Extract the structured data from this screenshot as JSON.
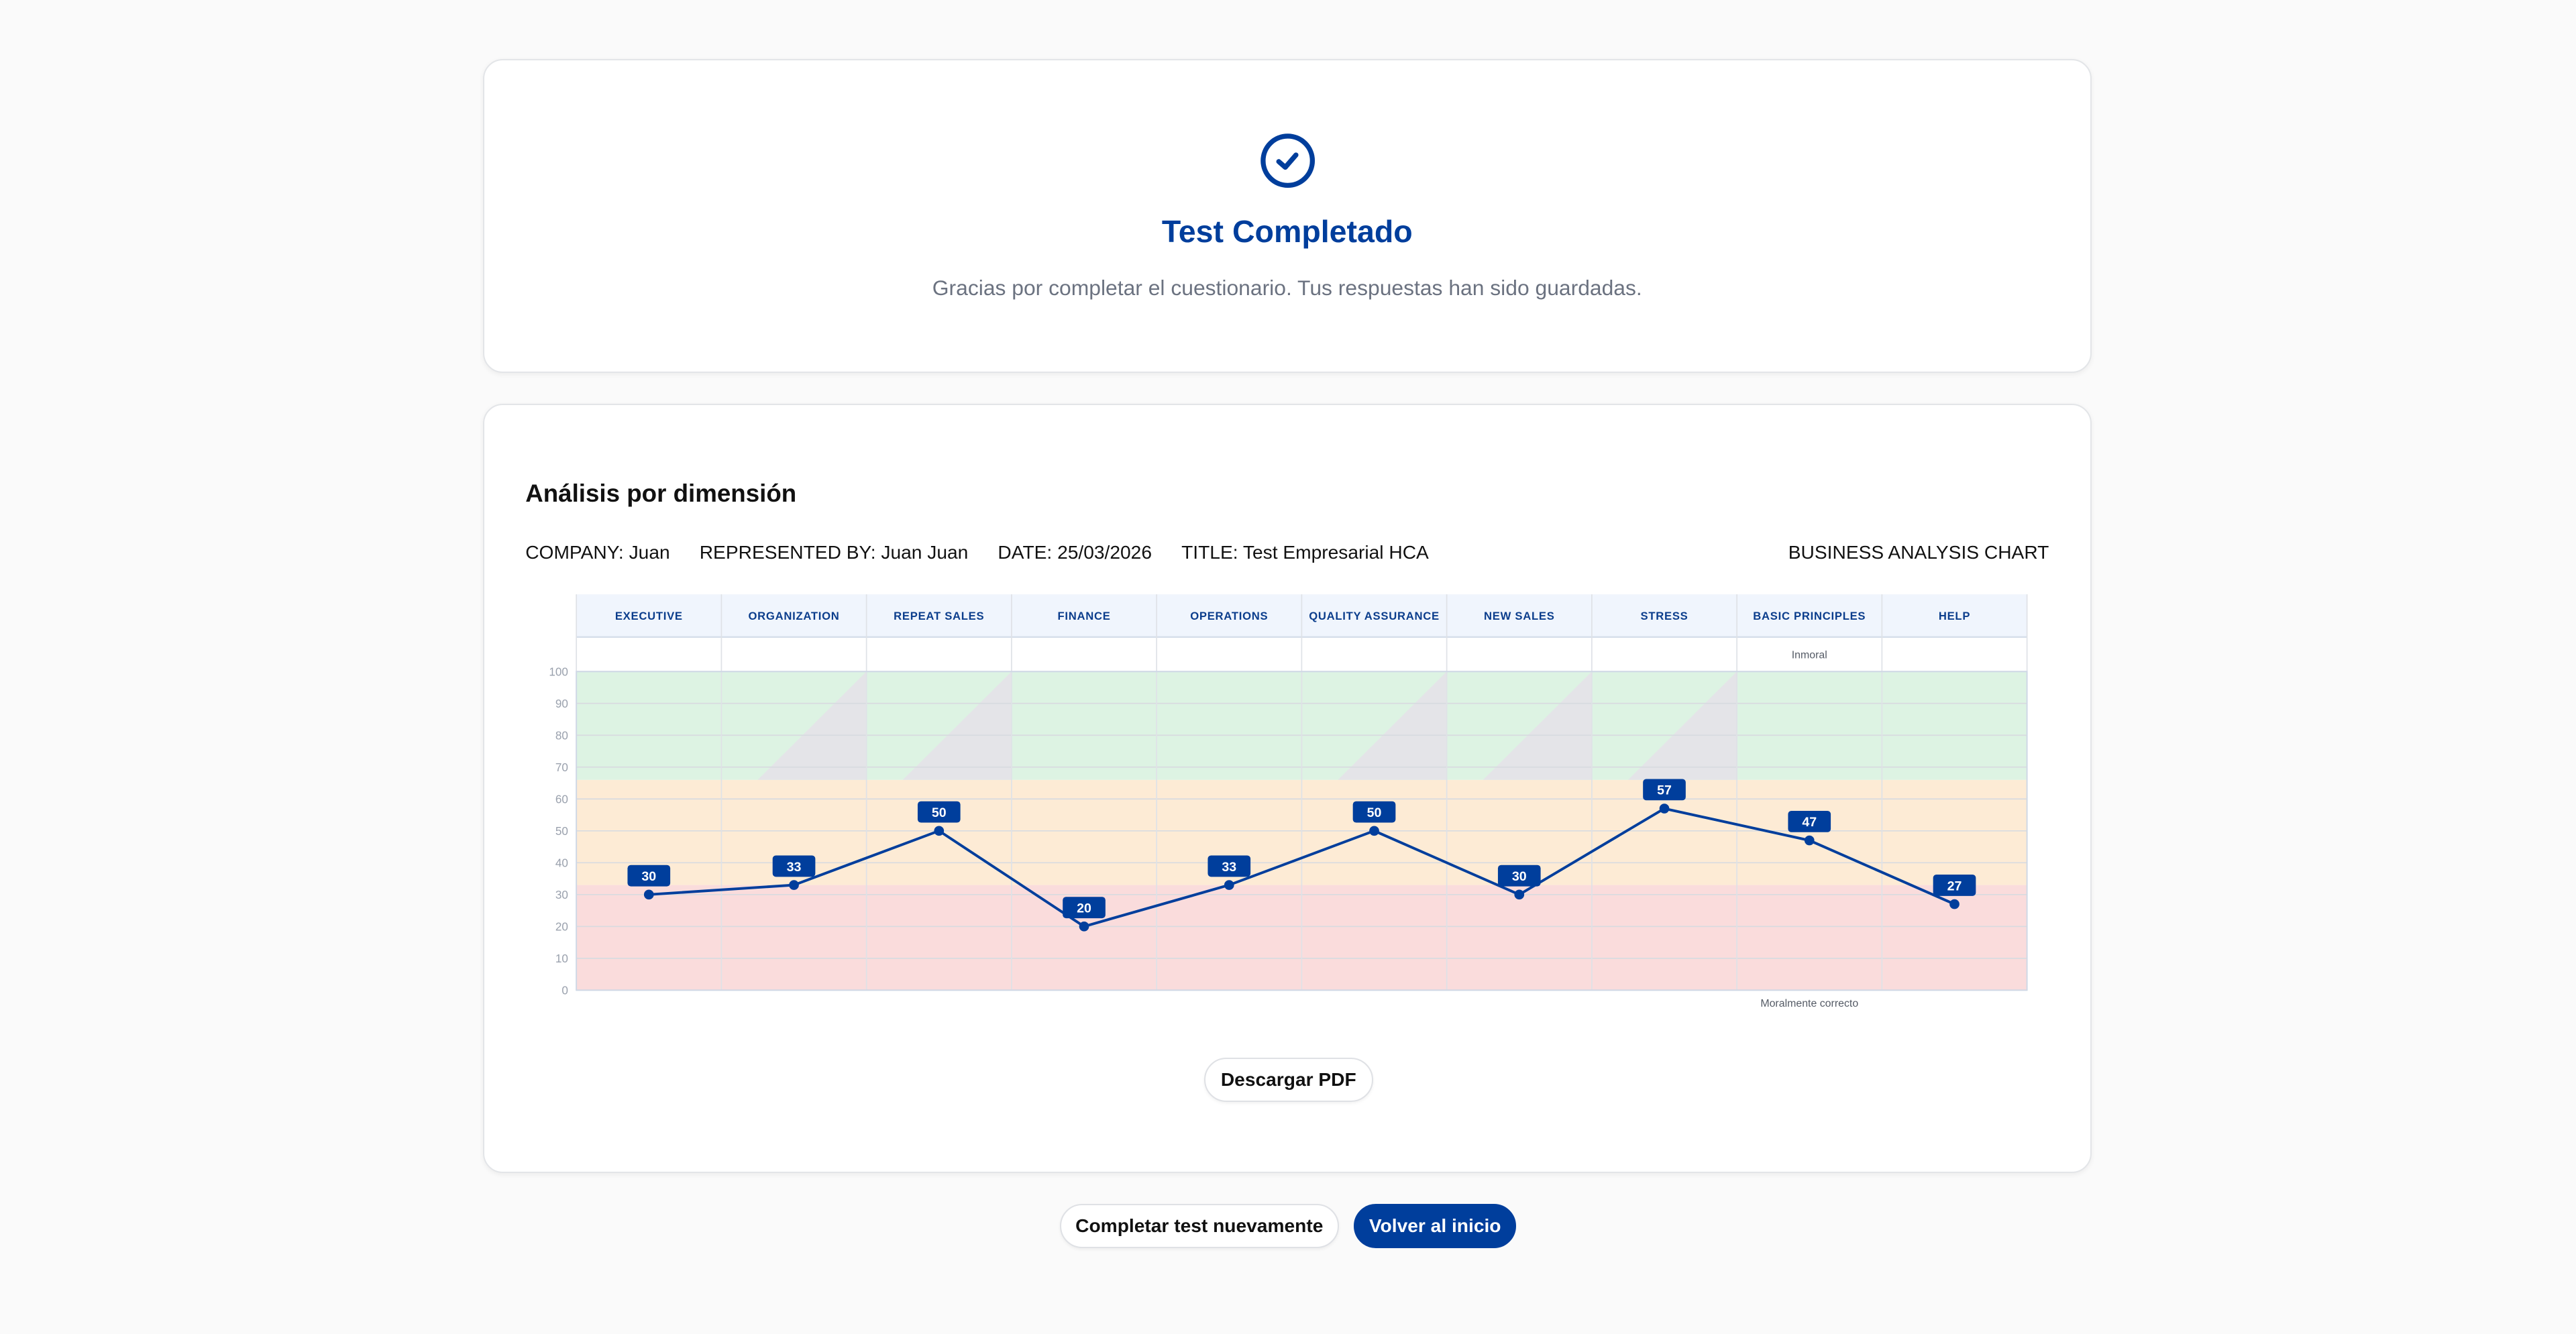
{
  "status": {
    "icon": "check-circle-icon",
    "title": "Test Completado",
    "message": "Gracias por completar el cuestionario. Tus respuestas han sido guardadas."
  },
  "analysis": {
    "heading": "Análisis por dimensión",
    "meta": {
      "company": "COMPANY: Juan",
      "represented_by": "REPRESENTED BY: Juan Juan",
      "date": "DATE: 25/03/2026",
      "title": "TITLE: Test Empresarial HCA",
      "chart_label": "BUSINESS ANALYSIS CHART"
    },
    "download_label": "Descargar PDF"
  },
  "actions": {
    "retake_label": "Completar test nuevamente",
    "home_label": "Volver al inicio"
  },
  "colors": {
    "accent": "#003e9c",
    "zone_high": "#ddf3e3",
    "zone_mid": "#fdebd5",
    "zone_low": "#fadcdc",
    "shade": "#e4e4e8"
  },
  "chart_data": {
    "type": "line",
    "categories": [
      "EXECUTIVE",
      "ORGANIZATION",
      "REPEAT SALES",
      "FINANCE",
      "OPERATIONS",
      "QUALITY ASSURANCE",
      "NEW SALES",
      "STRESS",
      "BASIC PRINCIPLES",
      "HELP"
    ],
    "values": [
      30,
      33,
      50,
      20,
      33,
      50,
      30,
      57,
      47,
      27
    ],
    "ylim": [
      0,
      100
    ],
    "yticks": [
      0,
      10,
      20,
      30,
      40,
      50,
      60,
      70,
      80,
      90,
      100
    ],
    "grid": true,
    "zones": [
      {
        "from": 0,
        "to": 33,
        "color": "#fadcdc"
      },
      {
        "from": 33,
        "to": 66,
        "color": "#fdebd5"
      },
      {
        "from": 66,
        "to": 100,
        "color": "#ddf3e3"
      }
    ],
    "shaded_categories": [
      "ORGANIZATION",
      "REPEAT SALES",
      "QUALITY ASSURANCE",
      "NEW SALES",
      "STRESS"
    ],
    "annotations": [
      {
        "category": "BASIC PRINCIPLES",
        "position": "top",
        "text": "Inmoral"
      },
      {
        "category": "BASIC PRINCIPLES",
        "position": "bottom",
        "text": "Moralmente correcto"
      }
    ]
  }
}
